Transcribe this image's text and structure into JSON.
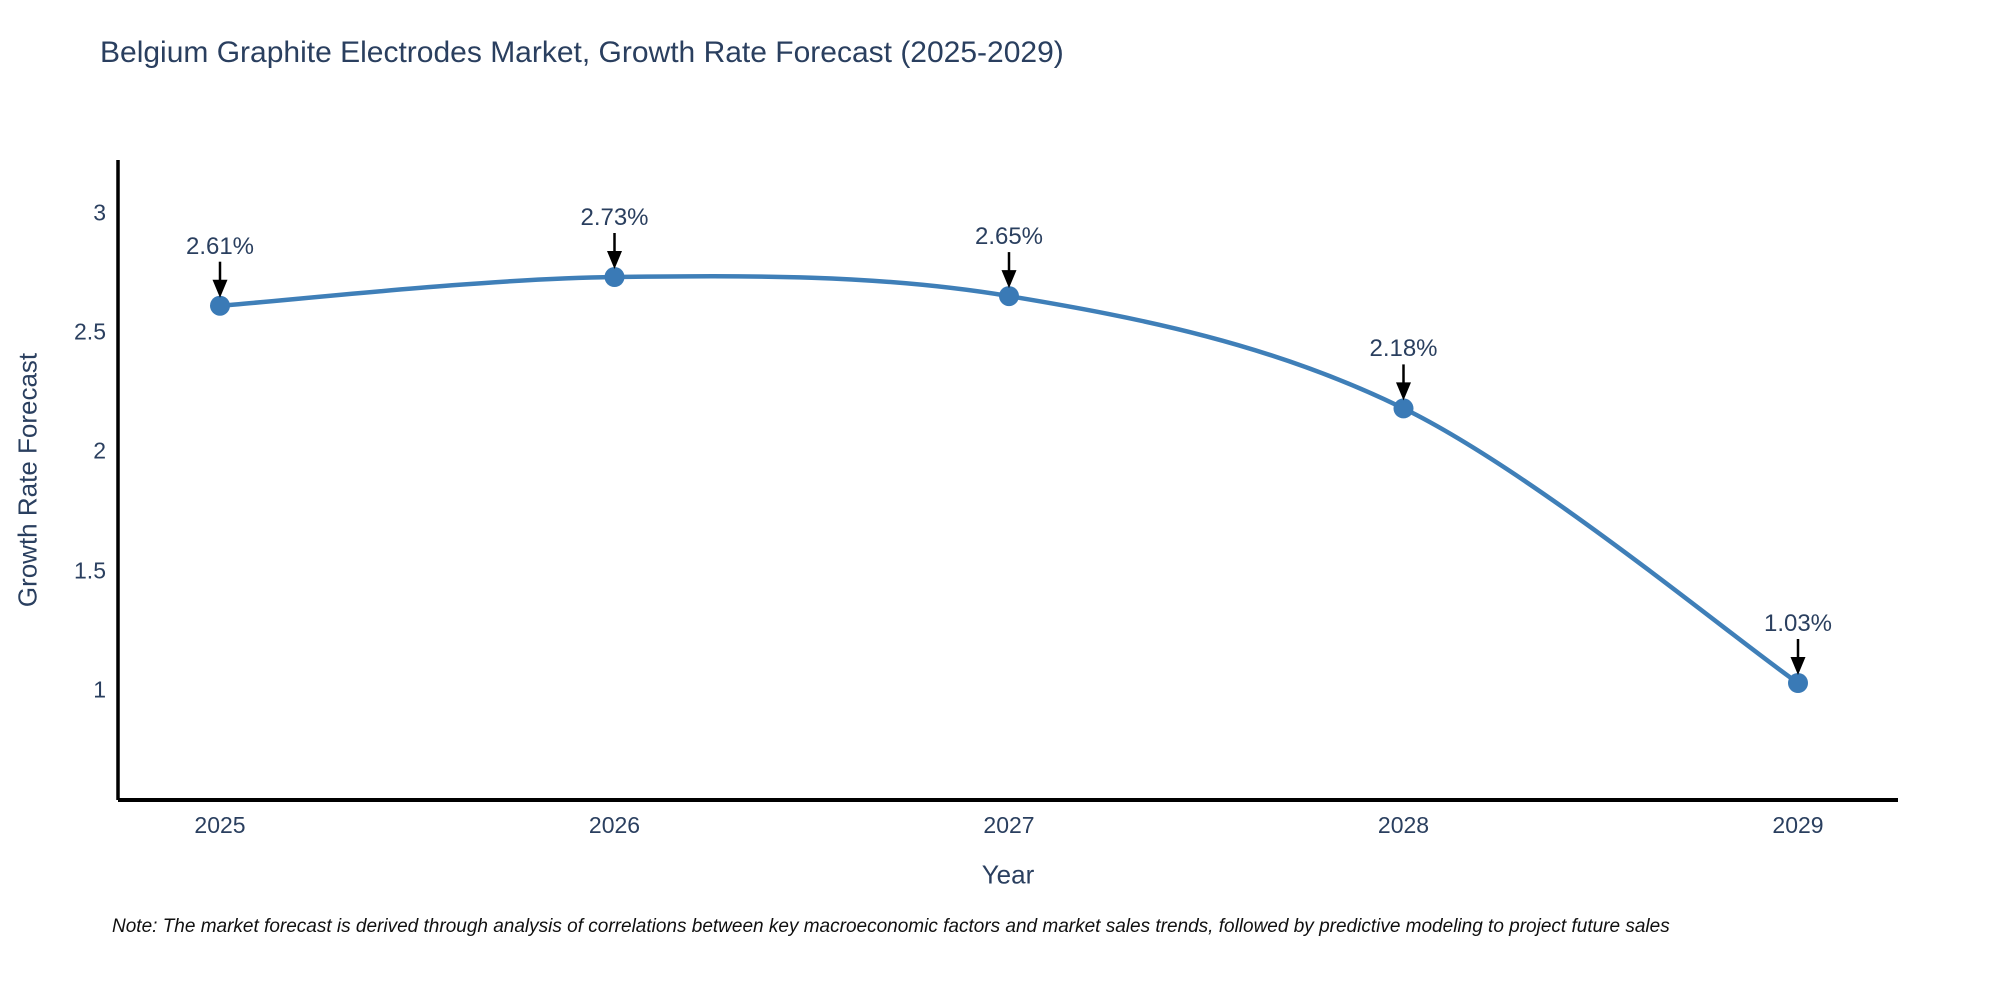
{
  "title": "Belgium Graphite Electrodes Market, Growth Rate Forecast (2025-2029)",
  "note": "Note: The market forecast is derived through analysis of correlations between key macroeconomic factors and market sales trends, followed by predictive modeling to project future sales",
  "chart_data": {
    "type": "line",
    "title": "Belgium Graphite Electrodes Market, Growth Rate Forecast (2025-2029)",
    "xlabel": "Year",
    "ylabel": "Growth Rate Forecast",
    "x": [
      2025,
      2026,
      2027,
      2028,
      2029
    ],
    "series": [
      {
        "name": "Growth Rate Forecast",
        "values": [
          2.61,
          2.73,
          2.65,
          2.18,
          1.03
        ]
      }
    ],
    "annotations": [
      "2.61%",
      "2.73%",
      "2.65%",
      "2.18%",
      "1.03%"
    ],
    "yticks": [
      3,
      2.5,
      2,
      1.5,
      1
    ],
    "ylim": [
      0.54,
      3.22
    ],
    "grid": false,
    "legend": "none",
    "line_shape": "spline",
    "markers": true,
    "line_color": "#3f7fb8",
    "marker_color": "#3a7ab6",
    "axis_color": "#000000",
    "arrow_color": "#000000",
    "text_color": "#2a3f5f"
  }
}
